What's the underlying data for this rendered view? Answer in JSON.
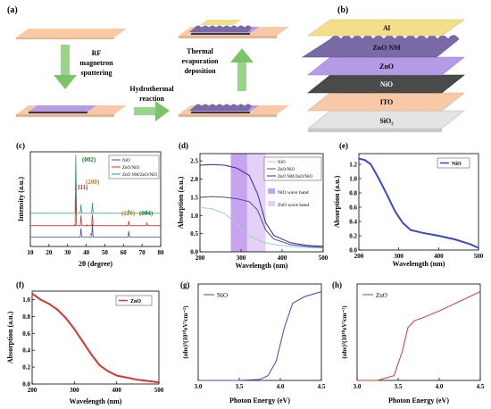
{
  "panels": {
    "a": {
      "label": "(a)",
      "step1": [
        "RF",
        "magnetron",
        "sputtering"
      ],
      "step2": [
        "Hydrothermal",
        "reaction"
      ],
      "step3": [
        "Thermal",
        "evaporation",
        "deposition"
      ]
    },
    "b": {
      "label": "(b)",
      "layers": [
        "Al",
        "ZnO NM",
        "ZnO",
        "NiO",
        "ITO",
        "SiO₂"
      ]
    },
    "c": {
      "label": "(c)",
      "ylabel": "Intensity (a.u.)",
      "xlabel": "2θ (degree)",
      "xticks": [
        "10",
        "20",
        "30",
        "40",
        "50",
        "60",
        "70",
        "80"
      ],
      "legend": [
        "NiO",
        "ZnO/NiO",
        "ZnO NM/ZnO/NiO"
      ],
      "peaks": [
        "(002)",
        "(111)",
        "(200)",
        "(220)",
        "(004)"
      ],
      "markers": [
        "*",
        "*",
        "*"
      ]
    },
    "d": {
      "label": "(d)",
      "ylabel": "Absorption (a.u.)",
      "xlabel": "Wavelength (nm)",
      "yticks": [
        "0.0",
        "0.5",
        "1.0",
        "1.5",
        "2.0",
        "2.5"
      ],
      "xticks": [
        "200",
        "300",
        "400",
        "500"
      ],
      "legend": [
        "NiO",
        "ZnO/NiO",
        "ZnO NM/ZnO/NiO"
      ],
      "bands": [
        "NiO wave band",
        "ZnO wave band"
      ]
    },
    "e": {
      "label": "(e)",
      "ylabel": "Absorption (a.u.)",
      "xlabel": "Wavelength (nm)",
      "yticks": [
        "0.0",
        "0.2",
        "0.4",
        "0.6",
        "0.8",
        "1.0",
        "1.2"
      ],
      "xticks": [
        "200",
        "300",
        "400",
        "500"
      ],
      "legend": "NiO"
    },
    "f": {
      "label": "(f)",
      "ylabel": "Absorption (a.u.)",
      "xlabel": "Wavelength (nm)",
      "yticks": [
        "0.0",
        "0.2",
        "0.4",
        "0.6",
        "0.8",
        "1.0"
      ],
      "xticks": [
        "200",
        "300",
        "400",
        "500"
      ],
      "legend": "ZnO"
    },
    "g": {
      "label": "(g)",
      "ylabel": "(αhν)²(10¹⁰eV²cm⁻²)",
      "xlabel": "Photon Energy (eV)",
      "xticks": [
        "3.0",
        "3.5",
        "4.0",
        "4.5"
      ],
      "legend": "NiO"
    },
    "h": {
      "label": "(h)",
      "ylabel": "(αhν)²(10¹⁰eV²cm⁻²)",
      "xlabel": "Photon Energy (eV)",
      "xticks": [
        "3.0",
        "3.5",
        "4.0",
        "4.5"
      ],
      "legend": "ZnO"
    }
  },
  "colors": {
    "substrate": "#f7c9a6",
    "nio_layer": "#3a3a3a",
    "zno_layer": "#b59be6",
    "nanomaterial": "#7a6aa8",
    "al_layer": "#f3df8a",
    "arrow": "#7cc46a",
    "nio_curve": "#3949c9",
    "zno_curve": "#e0302c",
    "combo_curve": "#1aa08a",
    "d_nio": "#9ad6b8",
    "d_zno": "#4a4ab0",
    "d_combo": "#2a2aa0",
    "band_dark": "#c9a4ee",
    "band_light": "#e4d1f7",
    "peak_red": "#c0392b",
    "peak_green": "#1a7a2a",
    "peak_orange": "#c97a16"
  },
  "chart_data": [
    {
      "panel": "c",
      "type": "line",
      "xlabel": "2θ (degree)",
      "ylabel": "Intensity (a.u.)",
      "xlim": [
        10,
        80
      ],
      "series": [
        {
          "name": "NiO",
          "peaks": [
            [
              37.2,
              0.15
            ],
            [
              43.3,
              0.22
            ],
            [
              62.9,
              0.1
            ]
          ]
        },
        {
          "name": "ZnO/NiO",
          "peaks": [
            [
              34.4,
              0.55
            ],
            [
              37.2,
              0.18
            ],
            [
              43.3,
              0.2
            ],
            [
              62.9,
              0.08
            ],
            [
              72.6,
              0.05
            ]
          ]
        },
        {
          "name": "ZnO NM/ZnO/NiO",
          "peaks": [
            [
              34.4,
              1.0
            ],
            [
              37.2,
              0.15
            ],
            [
              43.3,
              0.18
            ],
            [
              62.9,
              0.06
            ],
            [
              72.6,
              0.04
            ]
          ]
        }
      ]
    },
    {
      "panel": "d",
      "type": "line",
      "xlabel": "Wavelength (nm)",
      "ylabel": "Absorption (a.u.)",
      "xlim": [
        200,
        500
      ],
      "ylim": [
        0,
        2.7
      ],
      "series": [
        {
          "name": "NiO",
          "x": [
            200,
            230,
            260,
            290,
            320,
            350,
            380,
            420,
            460,
            500
          ],
          "y": [
            1.22,
            1.18,
            1.05,
            0.75,
            0.45,
            0.28,
            0.2,
            0.15,
            0.12,
            0.1
          ]
        },
        {
          "name": "ZnO/NiO",
          "x": [
            200,
            230,
            260,
            290,
            320,
            340,
            360,
            380,
            420,
            460,
            500
          ],
          "y": [
            1.5,
            1.52,
            1.5,
            1.46,
            1.38,
            1.15,
            0.6,
            0.35,
            0.2,
            0.15,
            0.12
          ]
        },
        {
          "name": "ZnO NM/ZnO/NiO",
          "x": [
            200,
            230,
            260,
            290,
            320,
            340,
            360,
            380,
            420,
            460,
            500
          ],
          "y": [
            2.38,
            2.4,
            2.38,
            2.3,
            2.1,
            1.6,
            0.8,
            0.45,
            0.25,
            0.18,
            0.15
          ]
        }
      ],
      "bands": [
        {
          "name": "NiO wave band",
          "range": [
            275,
            315
          ]
        },
        {
          "name": "ZnO wave band",
          "range": [
            315,
            360
          ]
        }
      ]
    },
    {
      "panel": "e",
      "type": "line",
      "xlabel": "Wavelength (nm)",
      "ylabel": "Absorption (a.u.)",
      "xlim": [
        200,
        500
      ],
      "ylim": [
        0,
        1.35
      ],
      "series": [
        {
          "name": "NiO",
          "x": [
            200,
            215,
            230,
            250,
            270,
            290,
            310,
            330,
            360,
            400,
            440,
            480,
            500
          ],
          "y": [
            1.28,
            1.26,
            1.2,
            1.0,
            0.78,
            0.55,
            0.38,
            0.28,
            0.24,
            0.2,
            0.15,
            0.08,
            0.03
          ]
        }
      ]
    },
    {
      "panel": "f",
      "type": "line",
      "xlabel": "Wavelength (nm)",
      "ylabel": "Absorption (a.u.)",
      "xlim": [
        200,
        500
      ],
      "ylim": [
        0,
        1.1
      ],
      "series": [
        {
          "name": "ZnO",
          "x": [
            200,
            220,
            240,
            260,
            280,
            300,
            320,
            340,
            360,
            380,
            400,
            450,
            500
          ],
          "y": [
            1.07,
            1.0,
            0.95,
            0.88,
            0.78,
            0.65,
            0.5,
            0.35,
            0.22,
            0.15,
            0.1,
            0.05,
            0.02
          ]
        }
      ]
    },
    {
      "panel": "g",
      "type": "line",
      "xlabel": "Photon Energy (eV)",
      "ylabel": "(αhν)²(10¹⁰eV²cm⁻²)",
      "xlim": [
        3.0,
        4.5
      ],
      "series": [
        {
          "name": "NiO",
          "x": [
            3.0,
            3.5,
            3.75,
            3.85,
            3.95,
            4.05,
            4.15,
            4.3,
            4.5
          ],
          "y": [
            0.0,
            0.0,
            0.01,
            0.05,
            0.2,
            0.55,
            0.8,
            0.87,
            0.92
          ]
        }
      ]
    },
    {
      "panel": "h",
      "type": "line",
      "xlabel": "Photon Energy (eV)",
      "ylabel": "(αhν)²(10¹⁰eV²cm⁻²)",
      "xlim": [
        3.0,
        4.5
      ],
      "series": [
        {
          "name": "ZnO",
          "x": [
            3.0,
            3.25,
            3.45,
            3.55,
            3.62,
            3.7,
            3.8,
            4.0,
            4.2,
            4.5
          ],
          "y": [
            0.0,
            0.0,
            0.05,
            0.3,
            0.55,
            0.62,
            0.65,
            0.72,
            0.8,
            0.92
          ]
        }
      ]
    }
  ]
}
